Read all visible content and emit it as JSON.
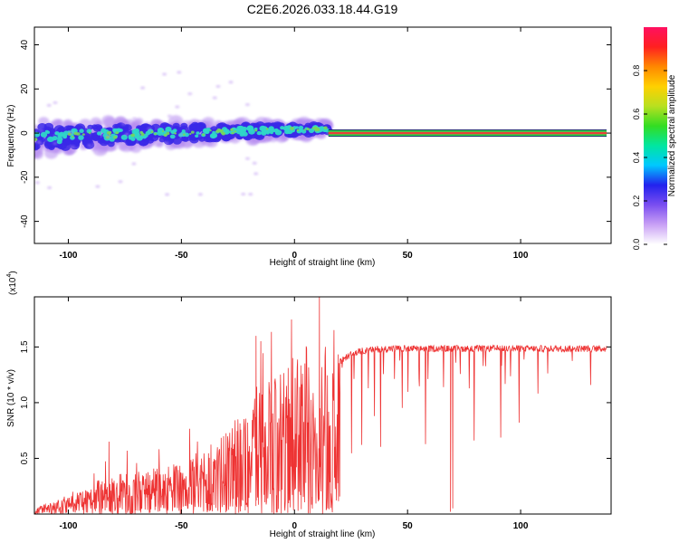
{
  "title": "C2E6.2026.033.18.44.G19",
  "colors": {
    "snr_line": "#ee3333",
    "ridge_center": "#e8403a",
    "ridge_band": "#2ad84a",
    "ridge_edge": "#1a2a6a",
    "blob_outer": "#b68cf0",
    "blob_mid": "#3a28e8",
    "blob_inner": "#2fd6c8",
    "blob_core": "#7ad65a"
  },
  "chart_data": [
    {
      "type": "heatmap",
      "title": "C2E6.2026.033.18.44.G19",
      "xlabel": "Height of straight line (km)",
      "ylabel": "Frequency (Hz)",
      "xlim": [
        -115,
        140
      ],
      "ylim": [
        -50,
        48
      ],
      "xticks": [
        -100,
        -50,
        0,
        50,
        100
      ],
      "xtick_labels": [
        "-100",
        "-50",
        "0",
        "50",
        "100"
      ],
      "yticks": [
        -40,
        -20,
        0,
        20,
        40
      ],
      "ytick_labels": [
        "-40",
        "-20",
        "0",
        "20",
        "40"
      ],
      "signal": {
        "description": "scattered spectral energy for heights below ~15 km, single sharp line at 0 Hz above",
        "scatter_range_km": [
          -115,
          15
        ],
        "frequency_spread_hz": [
          -10,
          6
        ],
        "line_range_km": [
          15,
          138
        ],
        "line_frequency_hz": 0,
        "line_amplitude": 0.85
      },
      "colorbar": {
        "label": "Normalized spectral amplitude",
        "range": [
          0,
          1
        ],
        "ticks": [
          0.0,
          0.2,
          0.4,
          0.6,
          0.8
        ],
        "tick_labels": [
          "0.0",
          "0.2",
          "0.4",
          "0.6",
          "0.8"
        ],
        "stops": [
          "#ffffff",
          "#c9a0f5",
          "#7a4ef0",
          "#2222ee",
          "#00c8ff",
          "#00e6a0",
          "#33dd22",
          "#b8e020",
          "#ffd000",
          "#ff8800",
          "#ff2020",
          "#ff1060"
        ]
      }
    },
    {
      "type": "line",
      "xlabel": "Height of straight line (km)",
      "ylabel": "SNR (10 * v/v)",
      "multiplier_label": "(x10",
      "multiplier_exp": "4",
      "multiplier_close": ")",
      "xlim": [
        -115,
        140
      ],
      "ylim": [
        0.0,
        1.95
      ],
      "xticks": [
        -100,
        -50,
        0,
        50,
        100
      ],
      "xtick_labels": [
        "-100",
        "-50",
        "0",
        "50",
        "100"
      ],
      "yticks": [
        0.5,
        1.0,
        1.5
      ],
      "ytick_labels": [
        "0.5",
        "1.0",
        "1.5"
      ],
      "series": [
        {
          "name": "SNR",
          "envelope_x": [
            -115,
            -100,
            -90,
            -80,
            -70,
            -60,
            -50,
            -40,
            -30,
            -20,
            -15,
            -10,
            -5,
            0,
            5,
            8,
            10,
            12,
            15,
            20,
            25,
            30,
            40,
            50,
            60,
            80,
            100,
            120,
            138
          ],
          "envelope_y": [
            0.05,
            0.12,
            0.2,
            0.28,
            0.32,
            0.33,
            0.38,
            0.48,
            0.6,
            0.8,
            0.95,
            1.0,
            1.05,
            1.15,
            1.25,
            1.0,
            0.5,
            1.1,
            1.3,
            1.38,
            1.45,
            1.48,
            1.5,
            1.5,
            1.5,
            1.5,
            1.5,
            1.5,
            1.5
          ],
          "notable_points": [
            {
              "x": -82,
              "y": 0.65
            },
            {
              "x": -17,
              "y": 1.6
            },
            {
              "x": 11,
              "y": 1.95
            },
            {
              "x": 69,
              "y": 0.02
            },
            {
              "x": 70,
              "y": 0.05
            }
          ]
        }
      ]
    }
  ]
}
